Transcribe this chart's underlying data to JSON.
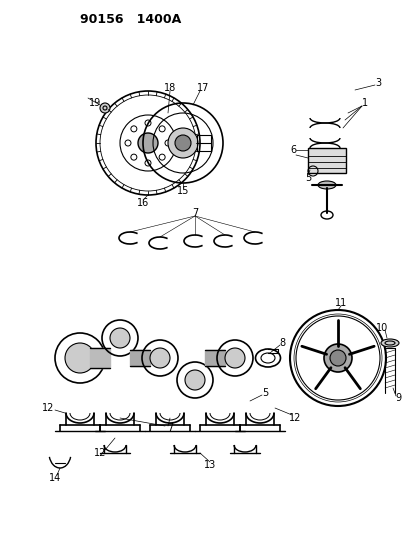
{
  "title": "90156   1400A",
  "bg_color": "#ffffff",
  "line_color": "#000000",
  "fig_width": 4.14,
  "fig_height": 5.33,
  "dpi": 100
}
